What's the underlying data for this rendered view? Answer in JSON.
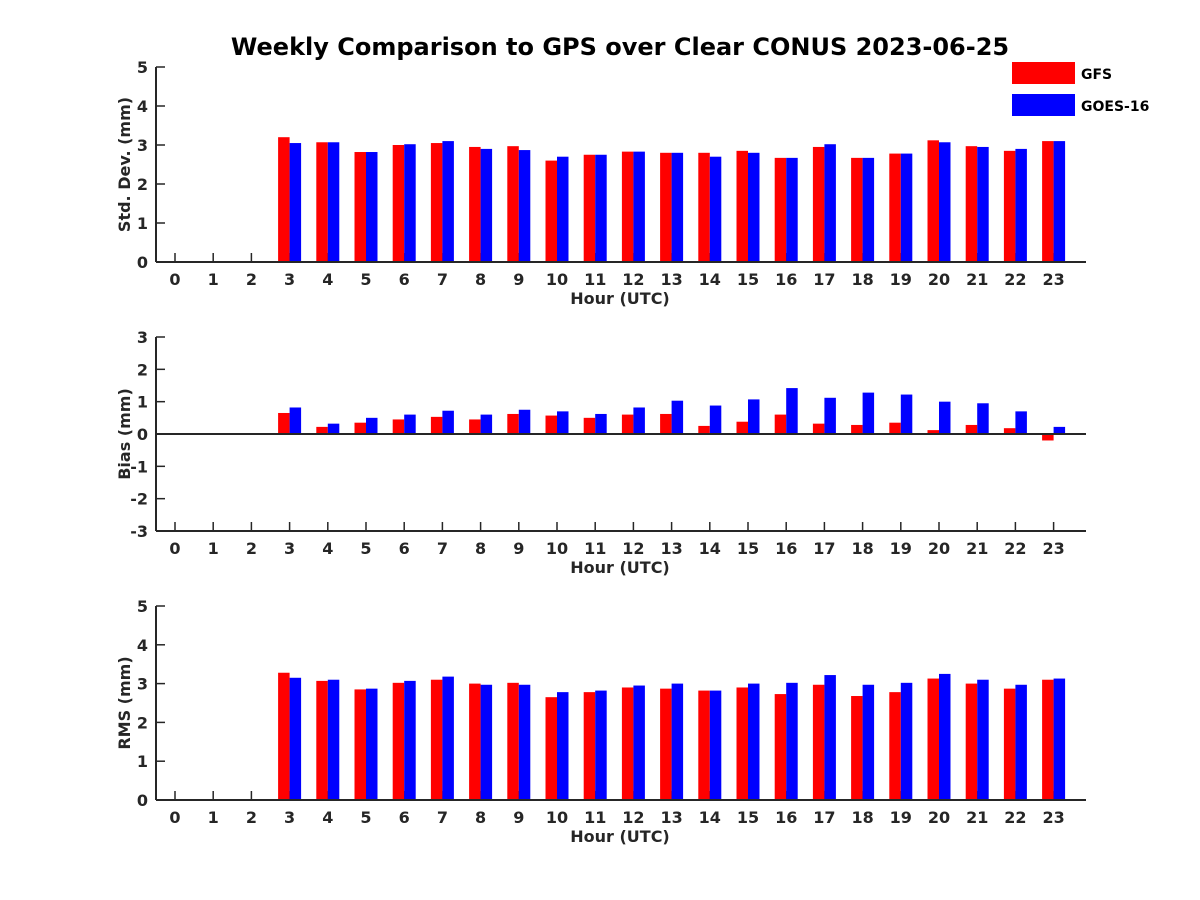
{
  "figure_title": "Weekly Comparison to GPS over Clear CONUS 2023-06-25",
  "legend": [
    {
      "label": "GFS",
      "color": "#ff0000"
    },
    {
      "label": "GOES-16",
      "color": "#0000ff"
    }
  ],
  "chart_data": [
    {
      "type": "bar",
      "xlabel": "Hour (UTC)",
      "ylabel": "Std. Dev. (mm)",
      "ylim": [
        0,
        5
      ],
      "yticks": [
        0,
        1,
        2,
        3,
        4,
        5
      ],
      "categories": [
        "0",
        "1",
        "2",
        "3",
        "4",
        "5",
        "6",
        "7",
        "8",
        "9",
        "10",
        "11",
        "12",
        "13",
        "14",
        "15",
        "16",
        "17",
        "18",
        "19",
        "20",
        "21",
        "22",
        "23"
      ],
      "series": [
        {
          "name": "GFS",
          "color": "#ff0000",
          "values": [
            null,
            null,
            null,
            3.2,
            3.07,
            2.82,
            3.0,
            3.05,
            2.95,
            2.97,
            2.6,
            2.75,
            2.83,
            2.8,
            2.8,
            2.85,
            2.67,
            2.95,
            2.67,
            2.78,
            3.12,
            2.97,
            2.85,
            3.1
          ]
        },
        {
          "name": "GOES-16",
          "color": "#0000ff",
          "values": [
            null,
            null,
            null,
            3.05,
            3.07,
            2.82,
            3.02,
            3.1,
            2.9,
            2.87,
            2.7,
            2.75,
            2.83,
            2.8,
            2.7,
            2.8,
            2.67,
            3.02,
            2.67,
            2.78,
            3.07,
            2.95,
            2.9,
            3.1
          ]
        }
      ]
    },
    {
      "type": "bar",
      "xlabel": "Hour (UTC)",
      "ylabel": "Bias (mm)",
      "ylim": [
        -3,
        3
      ],
      "yticks": [
        -3,
        -2,
        -1,
        0,
        1,
        2,
        3
      ],
      "categories": [
        "0",
        "1",
        "2",
        "3",
        "4",
        "5",
        "6",
        "7",
        "8",
        "9",
        "10",
        "11",
        "12",
        "13",
        "14",
        "15",
        "16",
        "17",
        "18",
        "19",
        "20",
        "21",
        "22",
        "23"
      ],
      "series": [
        {
          "name": "GFS",
          "color": "#ff0000",
          "values": [
            null,
            null,
            null,
            0.65,
            0.22,
            0.35,
            0.45,
            0.53,
            0.45,
            0.62,
            0.57,
            0.5,
            0.6,
            0.62,
            0.25,
            0.38,
            0.6,
            0.32,
            0.28,
            0.35,
            0.12,
            0.28,
            0.18,
            -0.2
          ]
        },
        {
          "name": "GOES-16",
          "color": "#0000ff",
          "values": [
            null,
            null,
            null,
            0.82,
            0.32,
            0.5,
            0.6,
            0.72,
            0.6,
            0.75,
            0.7,
            0.62,
            0.82,
            1.03,
            0.88,
            1.07,
            1.42,
            1.12,
            1.28,
            1.22,
            1.0,
            0.95,
            0.7,
            0.22
          ]
        }
      ]
    },
    {
      "type": "bar",
      "xlabel": "Hour (UTC)",
      "ylabel": "RMS (mm)",
      "ylim": [
        0,
        5
      ],
      "yticks": [
        0,
        1,
        2,
        3,
        4,
        5
      ],
      "categories": [
        "0",
        "1",
        "2",
        "3",
        "4",
        "5",
        "6",
        "7",
        "8",
        "9",
        "10",
        "11",
        "12",
        "13",
        "14",
        "15",
        "16",
        "17",
        "18",
        "19",
        "20",
        "21",
        "22",
        "23"
      ],
      "series": [
        {
          "name": "GFS",
          "color": "#ff0000",
          "values": [
            null,
            null,
            null,
            3.28,
            3.07,
            2.85,
            3.02,
            3.1,
            3.0,
            3.02,
            2.65,
            2.78,
            2.9,
            2.87,
            2.82,
            2.9,
            2.73,
            2.97,
            2.68,
            2.78,
            3.13,
            3.0,
            2.87,
            3.1
          ]
        },
        {
          "name": "GOES-16",
          "color": "#0000ff",
          "values": [
            null,
            null,
            null,
            3.15,
            3.1,
            2.87,
            3.07,
            3.18,
            2.97,
            2.97,
            2.78,
            2.82,
            2.95,
            3.0,
            2.82,
            3.0,
            3.02,
            3.22,
            2.97,
            3.02,
            3.25,
            3.1,
            2.97,
            3.13
          ]
        }
      ]
    }
  ]
}
